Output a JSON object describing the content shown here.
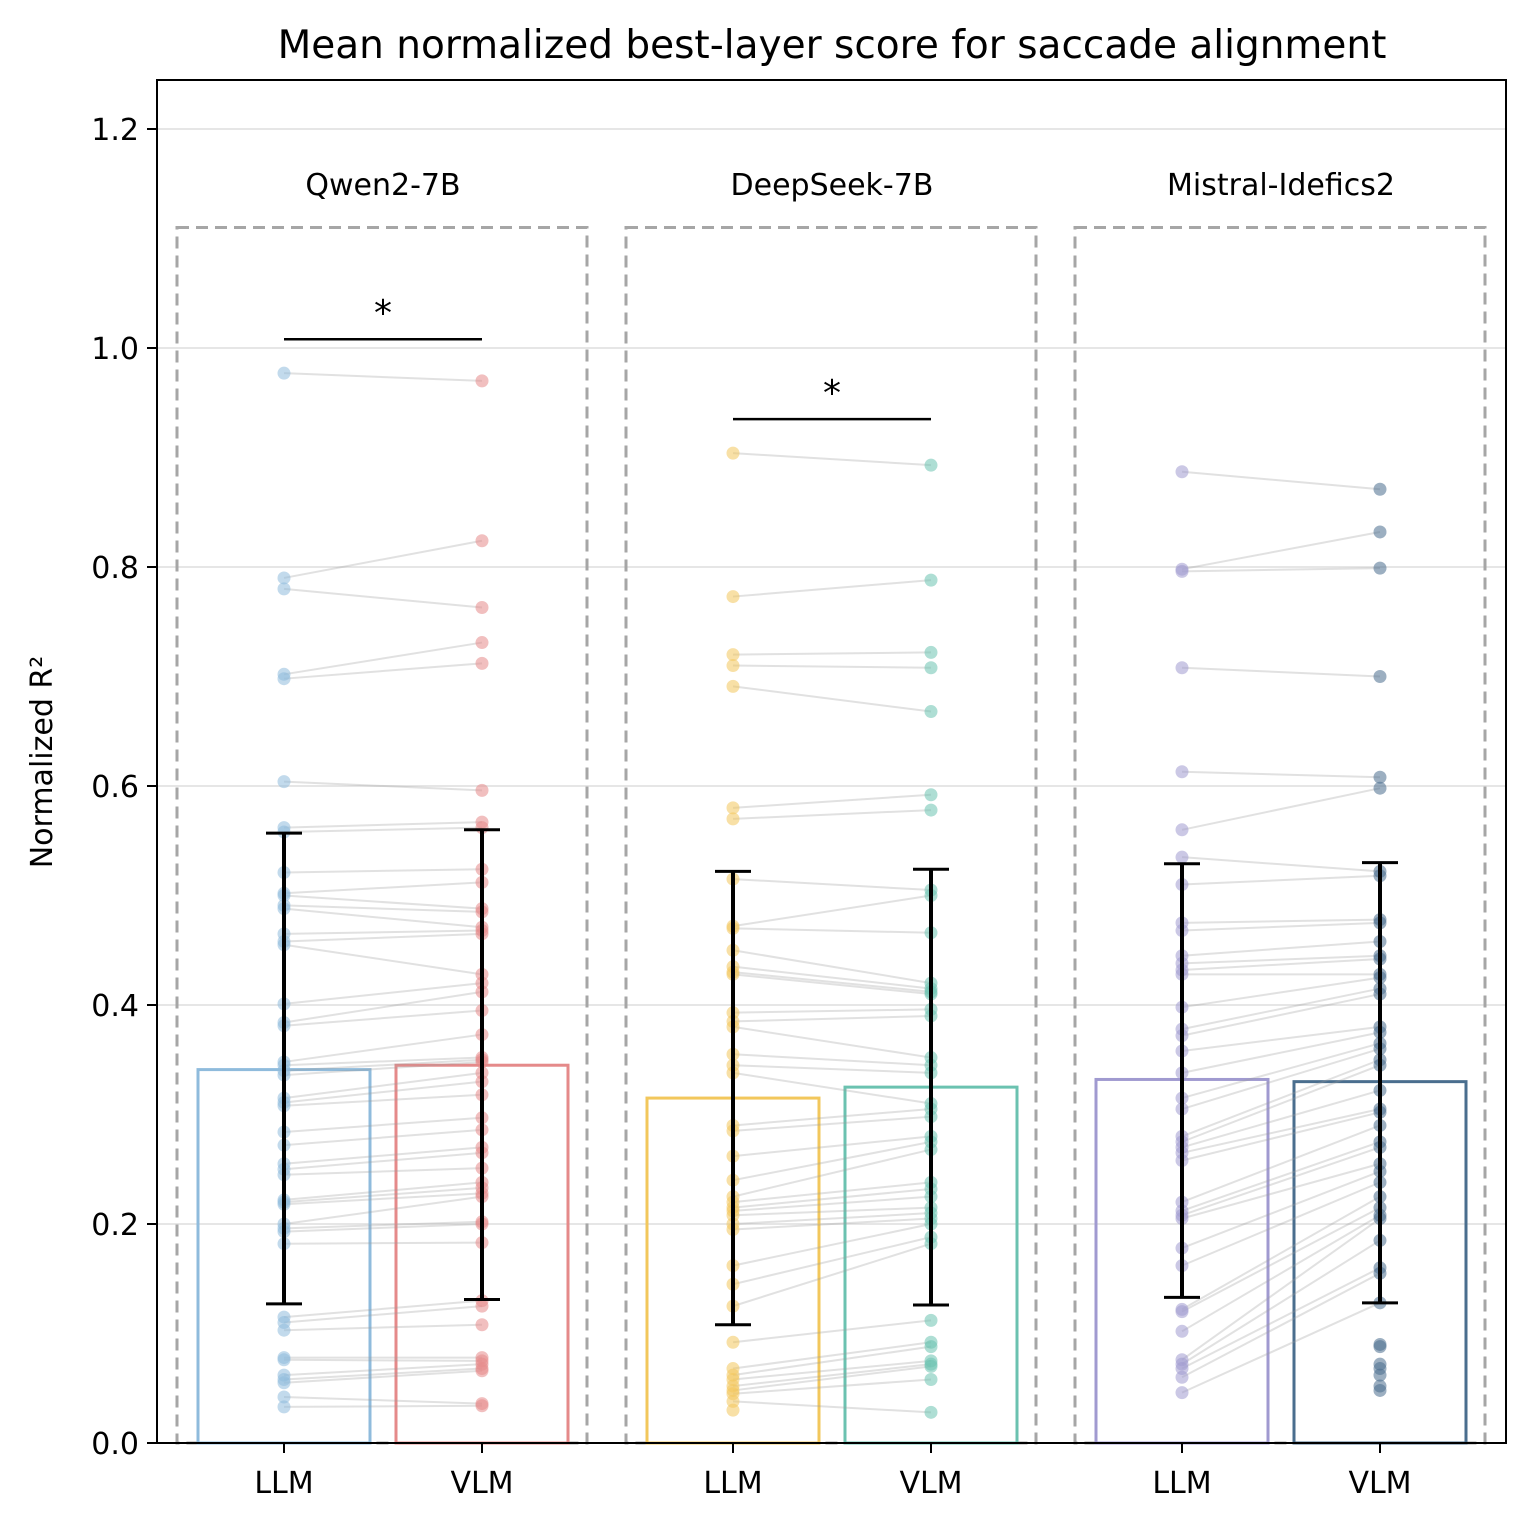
{
  "chart_data": {
    "type": "bar",
    "title": "Mean normalized best-layer score for saccade alignment",
    "xlabel": "",
    "ylabel": "Normalized R²",
    "ylim": [
      0,
      1.25
    ],
    "yticks": [
      "0.0",
      "0.2",
      "0.4",
      "0.6",
      "0.8",
      "1.0",
      "1.2"
    ],
    "grid": "horizontal",
    "significance_marker": "*",
    "groups": [
      {
        "name": "Qwen2-7B",
        "significant": true,
        "bars": [
          {
            "label": "LLM",
            "mean": 0.341,
            "sd_low": 0.127,
            "sd_high": 0.557,
            "color": "#8fbbdc",
            "points": [
              0.977,
              0.79,
              0.78,
              0.702,
              0.698,
              0.604,
              0.562,
              0.558,
              0.521,
              0.502,
              0.5,
              0.491,
              0.488,
              0.465,
              0.458,
              0.455,
              0.401,
              0.384,
              0.381,
              0.348,
              0.345,
              0.34,
              0.336,
              0.315,
              0.311,
              0.308,
              0.284,
              0.272,
              0.255,
              0.25,
              0.245,
              0.222,
              0.22,
              0.218,
              0.2,
              0.196,
              0.193,
              0.182,
              0.115,
              0.11,
              0.103,
              0.078,
              0.076,
              0.062,
              0.058,
              0.055,
              0.042,
              0.033
            ]
          },
          {
            "label": "VLM",
            "mean": 0.345,
            "sd_low": 0.131,
            "sd_high": 0.56,
            "color": "#e58a8a",
            "points": [
              0.97,
              0.824,
              0.763,
              0.731,
              0.712,
              0.596,
              0.567,
              0.562,
              0.524,
              0.512,
              0.488,
              0.485,
              0.471,
              0.468,
              0.465,
              0.428,
              0.42,
              0.412,
              0.395,
              0.373,
              0.352,
              0.35,
              0.348,
              0.338,
              0.33,
              0.318,
              0.297,
              0.286,
              0.27,
              0.265,
              0.251,
              0.238,
              0.233,
              0.228,
              0.225,
              0.202,
              0.2,
              0.183,
              0.13,
              0.125,
              0.108,
              0.078,
              0.075,
              0.072,
              0.068,
              0.066,
              0.036,
              0.034
            ]
          }
        ]
      },
      {
        "name": "DeepSeek-7B",
        "significant": true,
        "bars": [
          {
            "label": "LLM",
            "mean": 0.315,
            "sd_low": 0.108,
            "sd_high": 0.522,
            "color": "#f2c75c",
            "points": [
              0.904,
              0.773,
              0.72,
              0.71,
              0.691,
              0.58,
              0.57,
              0.515,
              0.472,
              0.47,
              0.45,
              0.435,
              0.43,
              0.428,
              0.393,
              0.385,
              0.38,
              0.355,
              0.345,
              0.338,
              0.29,
              0.285,
              0.262,
              0.24,
              0.225,
              0.22,
              0.215,
              0.212,
              0.208,
              0.2,
              0.195,
              0.162,
              0.145,
              0.125,
              0.092,
              0.068,
              0.062,
              0.058,
              0.052,
              0.048,
              0.045,
              0.038,
              0.03
            ]
          },
          {
            "label": "VLM",
            "mean": 0.325,
            "sd_low": 0.126,
            "sd_high": 0.524,
            "color": "#6bc2b0",
            "points": [
              0.893,
              0.788,
              0.722,
              0.708,
              0.668,
              0.592,
              0.578,
              0.505,
              0.5,
              0.466,
              0.42,
              0.415,
              0.412,
              0.41,
              0.396,
              0.39,
              0.352,
              0.345,
              0.338,
              0.31,
              0.305,
              0.298,
              0.28,
              0.275,
              0.268,
              0.238,
              0.232,
              0.225,
              0.215,
              0.21,
              0.205,
              0.2,
              0.188,
              0.182,
              0.112,
              0.092,
              0.088,
              0.075,
              0.072,
              0.07,
              0.058,
              0.028
            ]
          }
        ]
      },
      {
        "name": "Mistral-Idefics2",
        "significant": false,
        "bars": [
          {
            "label": "LLM",
            "mean": 0.332,
            "sd_low": 0.133,
            "sd_high": 0.529,
            "color": "#a09ad0",
            "points": [
              0.887,
              0.798,
              0.796,
              0.708,
              0.613,
              0.56,
              0.535,
              0.51,
              0.475,
              0.468,
              0.445,
              0.438,
              0.432,
              0.428,
              0.398,
              0.378,
              0.372,
              0.358,
              0.338,
              0.315,
              0.305,
              0.28,
              0.275,
              0.27,
              0.265,
              0.258,
              0.22,
              0.212,
              0.208,
              0.205,
              0.178,
              0.162,
              0.122,
              0.12,
              0.102,
              0.076,
              0.072,
              0.068,
              0.06,
              0.046
            ]
          },
          {
            "label": "VLM",
            "mean": 0.33,
            "sd_low": 0.128,
            "sd_high": 0.53,
            "color": "#4a6e8e",
            "points": [
              0.871,
              0.832,
              0.799,
              0.7,
              0.608,
              0.598,
              0.522,
              0.518,
              0.478,
              0.475,
              0.458,
              0.445,
              0.442,
              0.428,
              0.425,
              0.415,
              0.41,
              0.38,
              0.375,
              0.365,
              0.36,
              0.35,
              0.345,
              0.322,
              0.305,
              0.302,
              0.29,
              0.275,
              0.27,
              0.255,
              0.248,
              0.238,
              0.225,
              0.215,
              0.208,
              0.205,
              0.185,
              0.16,
              0.155,
              0.128,
              0.09,
              0.088,
              0.072,
              0.068,
              0.062,
              0.052,
              0.048
            ]
          }
        ]
      }
    ]
  }
}
